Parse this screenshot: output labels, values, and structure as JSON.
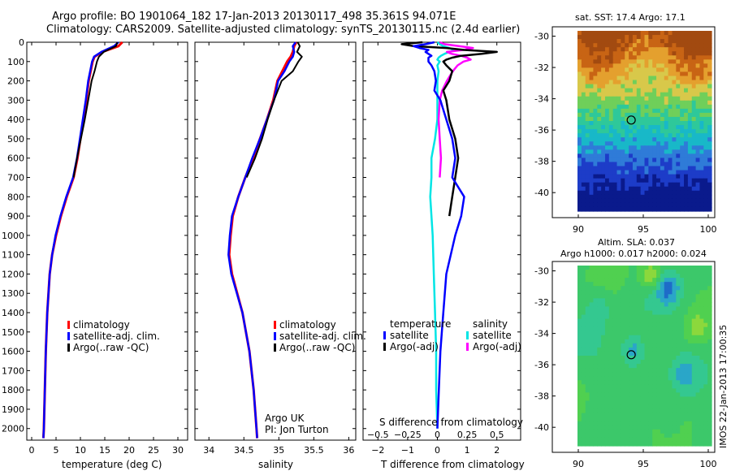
{
  "title_line1": "Argo profile: BO 1901064_182 17-Jan-2013 20130117_498 35.361S 94.071E",
  "title_line2": "Climatology: CARS2009. Satellite-adjusted climatology: synTS_20130115.nc (2.4d earlier)",
  "credit_org": "Argo UK",
  "credit_pi": "PI: Jon Turton",
  "side_stamp": "IMOS 22-Jan-2013 17:00:35",
  "colors": {
    "climatology": "#ff0000",
    "satellite_t": "#0000ff",
    "argo_t": "#000000",
    "satellite_s": "#00e5e5",
    "argo_s": "#ff00ff"
  },
  "chart_data": [
    {
      "type": "line",
      "id": "temperature",
      "xlabel": "temperature (deg C)",
      "xlim": [
        -1,
        32
      ],
      "xticks": [
        0,
        5,
        10,
        15,
        20,
        25,
        30
      ],
      "ylim": [
        2060,
        0
      ],
      "yticks": [
        0,
        100,
        200,
        300,
        400,
        500,
        600,
        700,
        800,
        900,
        1000,
        1100,
        1200,
        1300,
        1400,
        1500,
        1600,
        1700,
        1800,
        1900,
        2000
      ],
      "legend": [
        "climatology",
        "satellite-adj. clim.",
        "Argo(..raw -QC)"
      ],
      "depth": [
        0,
        20,
        50,
        75,
        100,
        150,
        200,
        300,
        400,
        500,
        600,
        700,
        800,
        900,
        1000,
        1100,
        1200,
        1400,
        1600,
        1800,
        2000,
        2050
      ],
      "series": [
        {
          "name": "climatology",
          "values": [
            18.6,
            17.8,
            14.5,
            12.9,
            12.5,
            12.1,
            11.7,
            11.2,
            10.6,
            10.0,
            9.4,
            8.6,
            7.2,
            6.0,
            5.0,
            4.2,
            3.7,
            3.2,
            2.9,
            2.7,
            2.5,
            2.4
          ]
        },
        {
          "name": "satellite-adj. clim.",
          "values": [
            17.8,
            16.9,
            14.3,
            12.8,
            12.4,
            12.0,
            11.6,
            11.1,
            10.5,
            9.9,
            9.3,
            8.5,
            7.1,
            5.9,
            4.9,
            4.2,
            3.7,
            3.2,
            2.9,
            2.7,
            2.5,
            2.4
          ]
        },
        {
          "name": "Argo(..raw -QC)",
          "values": [
            17.6,
            17.3,
            14.8,
            13.8,
            13.4,
            12.9,
            12.3,
            11.6,
            10.9,
            10.1,
            9.3,
            8.6,
            null,
            null,
            null,
            null,
            null,
            null,
            null,
            null,
            null,
            null
          ]
        }
      ]
    },
    {
      "type": "line",
      "id": "salinity",
      "xlabel": "salinity",
      "xlim": [
        33.8,
        36.1
      ],
      "xticks": [
        34,
        34.5,
        35,
        35.5,
        36
      ],
      "xticklabels": [
        "34",
        "34.5",
        "35",
        "35.5",
        "36"
      ],
      "ylim": [
        2060,
        0
      ],
      "legend": [
        "climatology",
        "satellite-adj. clim.",
        "Argo(..raw -QC)"
      ],
      "depth": [
        0,
        20,
        50,
        75,
        100,
        150,
        200,
        300,
        400,
        500,
        600,
        700,
        800,
        900,
        1000,
        1100,
        1200,
        1400,
        1600,
        1800,
        2000,
        2050
      ],
      "series": [
        {
          "name": "climatology",
          "values": [
            35.25,
            35.22,
            35.2,
            35.17,
            35.12,
            35.05,
            34.98,
            34.92,
            34.83,
            34.73,
            34.63,
            34.52,
            34.42,
            34.34,
            34.31,
            34.29,
            34.33,
            34.48,
            34.58,
            34.64,
            34.68,
            34.69
          ]
        },
        {
          "name": "satellite-adj. clim.",
          "values": [
            35.24,
            35.2,
            35.22,
            35.2,
            35.15,
            35.08,
            34.99,
            34.93,
            34.83,
            34.73,
            34.62,
            34.52,
            34.42,
            34.33,
            34.3,
            34.28,
            34.32,
            34.48,
            34.58,
            34.64,
            34.68,
            34.69
          ]
        },
        {
          "name": "Argo(..raw -QC)",
          "values": [
            35.27,
            35.3,
            35.26,
            35.33,
            35.28,
            35.2,
            35.04,
            34.93,
            34.84,
            34.76,
            34.66,
            34.54,
            null,
            null,
            null,
            null,
            null,
            null,
            null,
            null,
            null,
            null
          ]
        }
      ]
    },
    {
      "type": "line",
      "id": "difference",
      "xlabel": "T difference from climatology",
      "xlabel_top": "S difference from climatology",
      "xlim": [
        -2.5,
        2.8
      ],
      "xticks": [
        -2,
        -1,
        0,
        1,
        2
      ],
      "xticklabels": [
        "−2",
        "−1",
        "0",
        "1",
        "2"
      ],
      "s_xticks": [
        -0.5,
        -0.25,
        0,
        0.25,
        0.5
      ],
      "s_xticklabels": [
        "−0.5",
        "−0.25",
        "0",
        "0.25",
        "0.5"
      ],
      "ylim": [
        2060,
        0
      ],
      "legend_temperature_title": "temperature",
      "legend_salinity_title": "salinity",
      "legend": [
        "satellite",
        "Argo(-adj)",
        "satellite",
        "Argo(-adj)"
      ],
      "depth": [
        0,
        10,
        20,
        30,
        40,
        50,
        60,
        70,
        80,
        90,
        100,
        120,
        150,
        200,
        250,
        300,
        400,
        500,
        600,
        700,
        800,
        900,
        1000,
        1200,
        1400,
        1600,
        1800,
        2000
      ],
      "series": [
        {
          "name": "temperature satellite",
          "values": [
            -0.1,
            -0.4,
            -0.8,
            -0.6,
            -0.3,
            -0.4,
            -0.3,
            -0.2,
            -0.3,
            -0.3,
            -0.3,
            -0.2,
            -0.1,
            -0.05,
            -0.1,
            0.1,
            0.3,
            0.5,
            0.6,
            0.5,
            0.9,
            0.8,
            0.6,
            0.3,
            0.2,
            0.1,
            0.05,
            0.0
          ]
        },
        {
          "name": "temperature Argo(-adj)",
          "values": [
            -0.5,
            -1.2,
            -0.8,
            0.3,
            0.9,
            2.0,
            1.5,
            0.8,
            0.5,
            0.3,
            0.2,
            0.3,
            0.5,
            0.4,
            0.2,
            0.3,
            0.4,
            0.6,
            0.7,
            0.6,
            0.5,
            0.4,
            null,
            null,
            null,
            null,
            null,
            null
          ]
        },
        {
          "name": "salinity satellite",
          "values": [
            0.0,
            0.02,
            0.05,
            0.1,
            0.14,
            0.1,
            0.06,
            0.03,
            0.01,
            0.0,
            0.02,
            0.0,
            0.01,
            0.0,
            0.0,
            0.0,
            0.0,
            -0.02,
            -0.05,
            -0.05,
            -0.06,
            -0.05,
            -0.04,
            -0.03,
            -0.02,
            -0.01,
            -0.01,
            0.0
          ]
        },
        {
          "name": "salinity Argo(-adj)",
          "values": [
            0.02,
            0.06,
            0.18,
            0.3,
            0.22,
            0.08,
            0.12,
            0.2,
            0.25,
            0.28,
            0.22,
            0.17,
            0.13,
            0.08,
            0.04,
            0.02,
            0.01,
            0.02,
            0.03,
            0.02,
            null,
            null,
            null,
            null,
            null,
            null,
            null,
            null
          ]
        }
      ]
    },
    {
      "type": "heatmap",
      "id": "sst_map",
      "title": "sat. SST: 17.4 Argo: 17.1",
      "xlim": [
        88,
        100.5
      ],
      "ylim": [
        -41.6,
        -29.4
      ],
      "xticks": [
        90,
        95,
        100
      ],
      "yticks": [
        -30,
        -32,
        -34,
        -36,
        -38,
        -40
      ],
      "profile_location": [
        94.071,
        -35.361
      ],
      "palette": [
        "#0a1a8c",
        "#1d3cc8",
        "#2f7bd8",
        "#18b8c8",
        "#2ec89a",
        "#6fcf5a",
        "#d8c84a",
        "#e4a02e",
        "#c86414",
        "#a24a10"
      ]
    },
    {
      "type": "heatmap",
      "id": "sla_map",
      "title_line1": "Altim. SLA: 0.037",
      "title_line2": "Argo h1000: 0.017 h2000: 0.024",
      "xlim": [
        88,
        100.5
      ],
      "ylim": [
        -41.6,
        -29.4
      ],
      "xticks": [
        90,
        95,
        100
      ],
      "yticks": [
        -30,
        -32,
        -34,
        -36,
        -38,
        -40
      ],
      "profile_location": [
        94.071,
        -35.361
      ],
      "palette": [
        "#1e6cc8",
        "#2aa6c8",
        "#34c890",
        "#3cc86a",
        "#50d050",
        "#8cd83c",
        "#c8d83a",
        "#e0b030"
      ]
    }
  ]
}
